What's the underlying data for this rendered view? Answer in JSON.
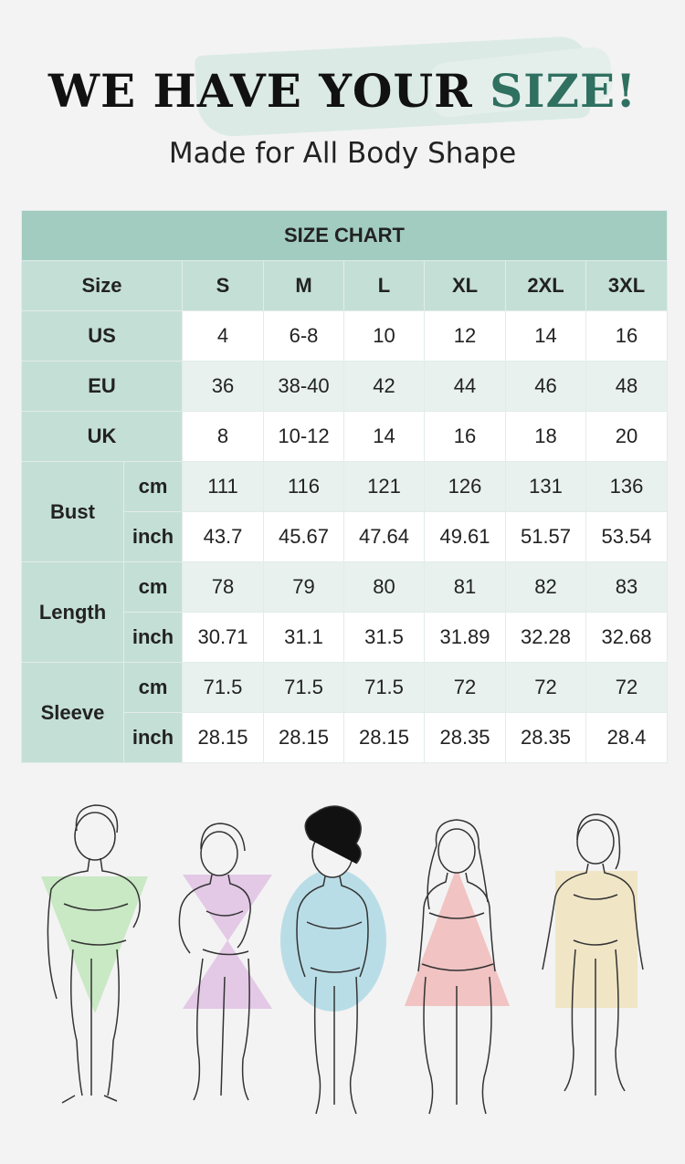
{
  "header": {
    "title_main": "WE HAVE YOUR ",
    "title_accent": "SIZE!",
    "subtitle": "Made for All Body Shape"
  },
  "table": {
    "title": "SIZE CHART",
    "size_label": "Size",
    "sizes": [
      "S",
      "M",
      "L",
      "XL",
      "2XL",
      "3XL"
    ],
    "regions": [
      {
        "name": "US",
        "values": [
          "4",
          "6-8",
          "10",
          "12",
          "14",
          "16"
        ]
      },
      {
        "name": "EU",
        "values": [
          "36",
          "38-40",
          "42",
          "44",
          "46",
          "48"
        ]
      },
      {
        "name": "UK",
        "values": [
          "8",
          "10-12",
          "14",
          "16",
          "18",
          "20"
        ]
      }
    ],
    "measurements": [
      {
        "name": "Bust",
        "cm": [
          "111",
          "116",
          "121",
          "126",
          "131",
          "136"
        ],
        "inch": [
          "43.7",
          "45.67",
          "47.64",
          "49.61",
          "51.57",
          "53.54"
        ]
      },
      {
        "name": "Length",
        "cm": [
          "78",
          "79",
          "80",
          "81",
          "82",
          "83"
        ],
        "inch": [
          "30.71",
          "31.1",
          "31.5",
          "31.89",
          "32.28",
          "32.68"
        ]
      },
      {
        "name": "Sleeve",
        "cm": [
          "71.5",
          "71.5",
          "71.5",
          "72",
          "72",
          "72"
        ],
        "inch": [
          "28.15",
          "28.15",
          "28.15",
          "28.35",
          "28.35",
          "28.4"
        ]
      }
    ],
    "unit_cm": "cm",
    "unit_inch": "inch"
  },
  "body_shapes": [
    {
      "shape": "inverted-triangle",
      "color": "#c9e8c4"
    },
    {
      "shape": "hourglass",
      "color": "#e3c9e6"
    },
    {
      "shape": "apple",
      "color": "#b9dde7"
    },
    {
      "shape": "pear",
      "color": "#f1c3c3"
    },
    {
      "shape": "rectangle",
      "color": "#f0e6c6"
    }
  ]
}
